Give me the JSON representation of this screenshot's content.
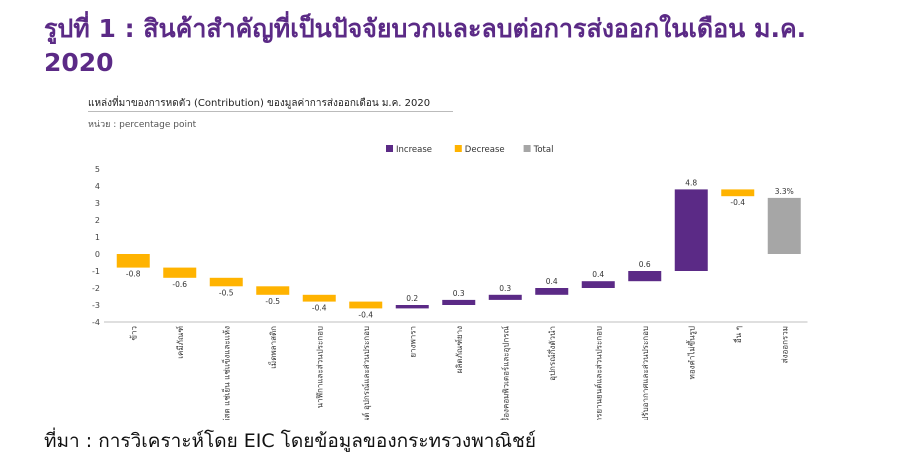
{
  "title": "รูปที่  1  :  สินค้าสำคัญที่เป็นปัจจัยบวกและลบต่อการส่งออกในเดือน ม.ค. 2020",
  "chart_heading": "แหล่งที่มาของการหดตัว (Contribution) ของมูลค่าการส่งออกเดือน ม.ค. 2020",
  "chart_unit": "หน่วย : percentage point",
  "source": "ที่มา : การวิเคราะห์โดย EIC โดยข้อมูลของกระทรวงพาณิชย์",
  "colors": {
    "increase": "#5b2a86",
    "decrease": "#ffb300",
    "total": "#a6a6a6"
  },
  "chart_data": {
    "type": "bar",
    "subtype": "waterfall",
    "legend": [
      "Increase",
      "Decrease",
      "Total"
    ],
    "legend_position": "top",
    "ylim": [
      -4,
      5
    ],
    "yticks": [
      5,
      4,
      3,
      2,
      1,
      0,
      -1,
      -2,
      -3,
      -4
    ],
    "grid": false,
    "categories": [
      "ข้าว",
      "เคมีภัณฑ์",
      "ผลไม้สด แช่เย็น แช่แข็งและแห้ง",
      "เม็ดพลาสติก",
      "นาฬิกาและส่วนประกอบ",
      "รถยนต์ อุปกรณ์และส่วนประกอบ",
      "ยางพารา",
      "ผลิตภัณฑ์ยาง",
      "เครื่องคอมพิวเตอร์และอุปกรณ์",
      "อุปกรณ์กึ่งตัวนำ",
      "รถจักรยานยนต์และส่วนประกอบ",
      "เครื่องปรับอากาศและส่วนประกอบ",
      "ทองคำไม่ขึ้นรูป",
      "อื่น ๆ",
      "ส่งออกรวม"
    ],
    "values": [
      -0.8,
      -0.6,
      -0.5,
      -0.5,
      -0.4,
      -0.4,
      0.2,
      0.3,
      0.3,
      0.4,
      0.4,
      0.6,
      4.8,
      -0.4,
      3.3
    ],
    "labels": [
      "-0.8",
      "-0.6",
      "-0.5",
      "-0.5",
      "-0.4",
      "-0.4",
      "0.2",
      "0.3",
      "0.3",
      "0.4",
      "0.4",
      "0.6",
      "4.8",
      "-0.4",
      "3.3%"
    ],
    "kinds": [
      "decrease",
      "decrease",
      "decrease",
      "decrease",
      "decrease",
      "decrease",
      "increase",
      "increase",
      "increase",
      "increase",
      "increase",
      "increase",
      "increase",
      "decrease",
      "total"
    ]
  }
}
